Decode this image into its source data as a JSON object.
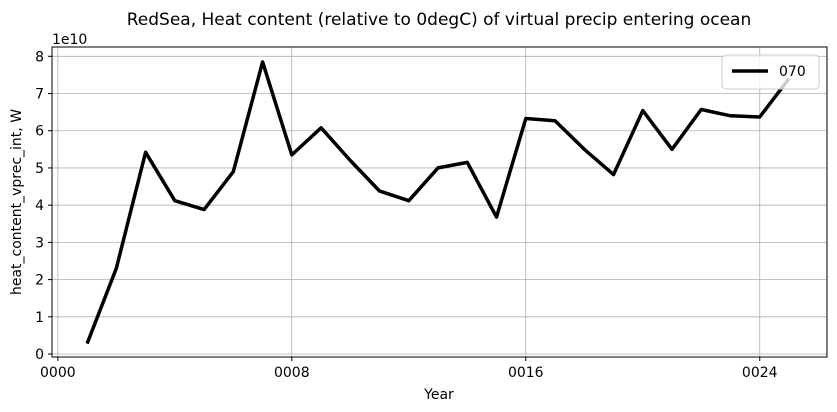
{
  "chart_data": {
    "type": "line",
    "title": "RedSea, Heat content (relative to 0degC) of virtual precip entering ocean",
    "xlabel": "Year",
    "ylabel": "heat_content_vprec_int, W",
    "y_offset_text": "1e10",
    "xlim": [
      -0.2,
      26.3
    ],
    "ylim": [
      -0.08,
      8.25
    ],
    "grid": true,
    "legend_position": "top-right",
    "x_ticks": [
      {
        "value": 0,
        "label": "0000"
      },
      {
        "value": 8,
        "label": "0008"
      },
      {
        "value": 16,
        "label": "0016"
      },
      {
        "value": 24,
        "label": "0024"
      }
    ],
    "y_ticks": [
      {
        "value": 0,
        "label": "0"
      },
      {
        "value": 1,
        "label": "1"
      },
      {
        "value": 2,
        "label": "2"
      },
      {
        "value": 3,
        "label": "3"
      },
      {
        "value": 4,
        "label": "4"
      },
      {
        "value": 5,
        "label": "5"
      },
      {
        "value": 6,
        "label": "6"
      },
      {
        "value": 7,
        "label": "7"
      },
      {
        "value": 8,
        "label": "8"
      }
    ],
    "series": [
      {
        "name": "070",
        "color": "#000000",
        "x": [
          1,
          2,
          3,
          4,
          5,
          6,
          7,
          8,
          9,
          10,
          11,
          12,
          13,
          14,
          15,
          16,
          17,
          18,
          19,
          20,
          21,
          22,
          23,
          24,
          25
        ],
        "values": [
          0.28,
          2.3,
          5.42,
          4.12,
          3.88,
          4.9,
          7.85,
          5.35,
          6.08,
          5.2,
          4.38,
          4.12,
          5.0,
          5.15,
          3.68,
          6.33,
          6.27,
          5.5,
          4.82,
          6.54,
          5.5,
          6.57,
          6.4,
          6.37,
          7.4
        ]
      }
    ]
  }
}
